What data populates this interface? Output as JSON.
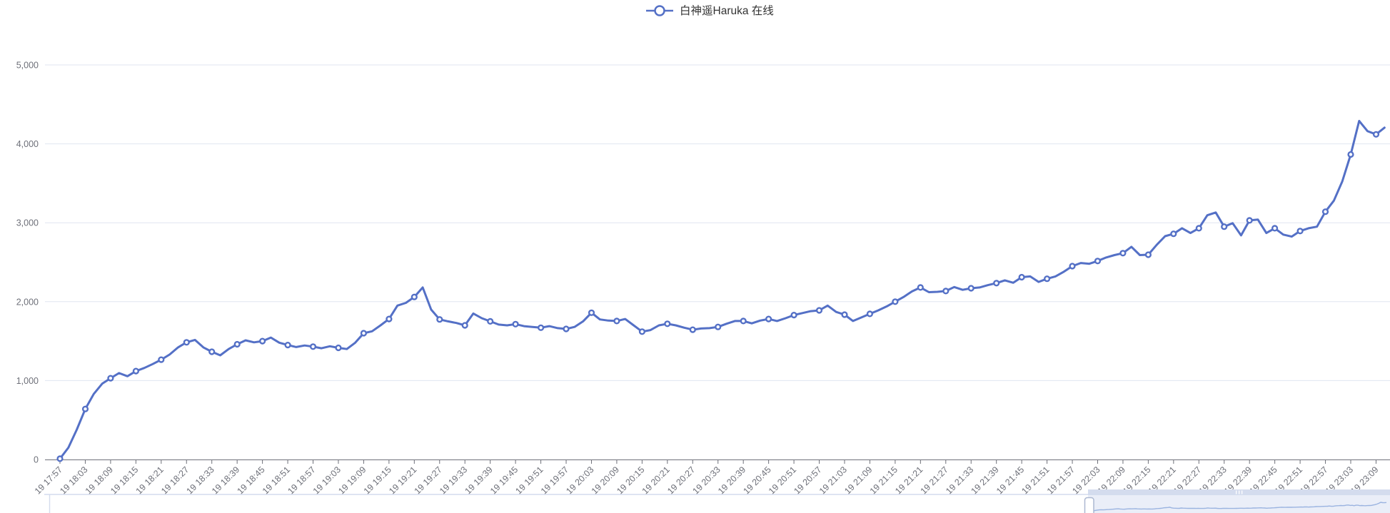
{
  "legend": {
    "label": "白神遥Haruka 在线"
  },
  "colors": {
    "series": "#5470C6",
    "marker_fill": "#FFFFFF",
    "axis_label": "#6E7079",
    "axis_line": "#6E7079",
    "grid_line": "#E0E6F1",
    "legend_text": "#333333",
    "zoom_window_fill": "rgba(92,120,200,0.13)",
    "zoom_move_bar": "#D4DCEE",
    "zoom_track_border": "#D4DCED",
    "zoom_mini_line": "#9AB3E0",
    "zoom_handle_fill": "#FFFFFF",
    "zoom_handle_stroke": "#ACB8D1"
  },
  "y_axis": {
    "labels": [
      "0",
      "1,000",
      "2,000",
      "3,000",
      "4,000",
      "5,000"
    ],
    "values": [
      0,
      1000,
      2000,
      3000,
      4000,
      5000
    ]
  },
  "x_axis": {
    "tick_labels": [
      "19 17:57",
      "19 18:03",
      "19 18:09",
      "19 18:15",
      "19 18:21",
      "19 18:27",
      "19 18:33",
      "19 18:39",
      "19 18:45",
      "19 18:51",
      "19 18:57",
      "19 19:03",
      "19 19:09",
      "19 19:15",
      "19 19:21",
      "19 19:27",
      "19 19:33",
      "19 19:39",
      "19 19:45",
      "19 19:51",
      "19 19:57",
      "19 20:03",
      "19 20:09",
      "19 20:15",
      "19 20:21",
      "19 20:27",
      "19 20:33",
      "19 20:39",
      "19 20:45",
      "19 20:51",
      "19 20:57",
      "19 21:03",
      "19 21:09",
      "19 21:15",
      "19 21:21",
      "19 21:27",
      "19 21:33",
      "19 21:39",
      "19 21:45",
      "19 21:51",
      "19 21:57",
      "19 22:03",
      "19 22:09",
      "19 22:15",
      "19 22:21",
      "19 22:27",
      "19 22:33",
      "19 22:39",
      "19 22:45",
      "19 22:51",
      "19 22:57",
      "19 23:03",
      "19 23:09"
    ]
  },
  "chart_data": {
    "type": "line",
    "series_name": "白神遥Haruka 在线",
    "points_per_tick": 3,
    "point_interval_minutes": 2,
    "x_start": "19 17:57",
    "x_end": "19 23:09",
    "ylim": [
      0,
      5000
    ],
    "grid": true,
    "legend_position": "top-center",
    "marker": "hollow-circle",
    "values": [
      10,
      150,
      380,
      640,
      830,
      960,
      1030,
      1095,
      1055,
      1120,
      1160,
      1210,
      1265,
      1330,
      1420,
      1485,
      1515,
      1420,
      1365,
      1320,
      1400,
      1460,
      1510,
      1485,
      1500,
      1545,
      1480,
      1450,
      1425,
      1445,
      1430,
      1410,
      1435,
      1415,
      1400,
      1480,
      1600,
      1625,
      1700,
      1780,
      1950,
      1985,
      2060,
      2180,
      1900,
      1775,
      1750,
      1730,
      1700,
      1850,
      1790,
      1750,
      1710,
      1700,
      1715,
      1690,
      1680,
      1670,
      1690,
      1665,
      1655,
      1680,
      1750,
      1860,
      1775,
      1760,
      1755,
      1780,
      1700,
      1620,
      1640,
      1700,
      1720,
      1700,
      1670,
      1645,
      1660,
      1665,
      1680,
      1720,
      1755,
      1755,
      1725,
      1760,
      1780,
      1755,
      1790,
      1830,
      1855,
      1880,
      1890,
      1950,
      1870,
      1835,
      1755,
      1800,
      1845,
      1890,
      1940,
      2000,
      2060,
      2130,
      2180,
      2120,
      2125,
      2135,
      2185,
      2150,
      2170,
      2180,
      2210,
      2235,
      2270,
      2240,
      2310,
      2320,
      2250,
      2290,
      2320,
      2380,
      2450,
      2490,
      2480,
      2515,
      2560,
      2590,
      2615,
      2695,
      2590,
      2595,
      2720,
      2830,
      2860,
      2930,
      2870,
      2930,
      3095,
      3130,
      2950,
      2995,
      2840,
      3030,
      3040,
      2870,
      2930,
      2850,
      2825,
      2895,
      2930,
      2950,
      3140,
      3280,
      3525,
      3865,
      4290,
      4160,
      4120,
      4205
    ]
  },
  "data_zoom": {
    "visible": true,
    "window_start_label": "19 22:03",
    "move_grip": "|||"
  }
}
